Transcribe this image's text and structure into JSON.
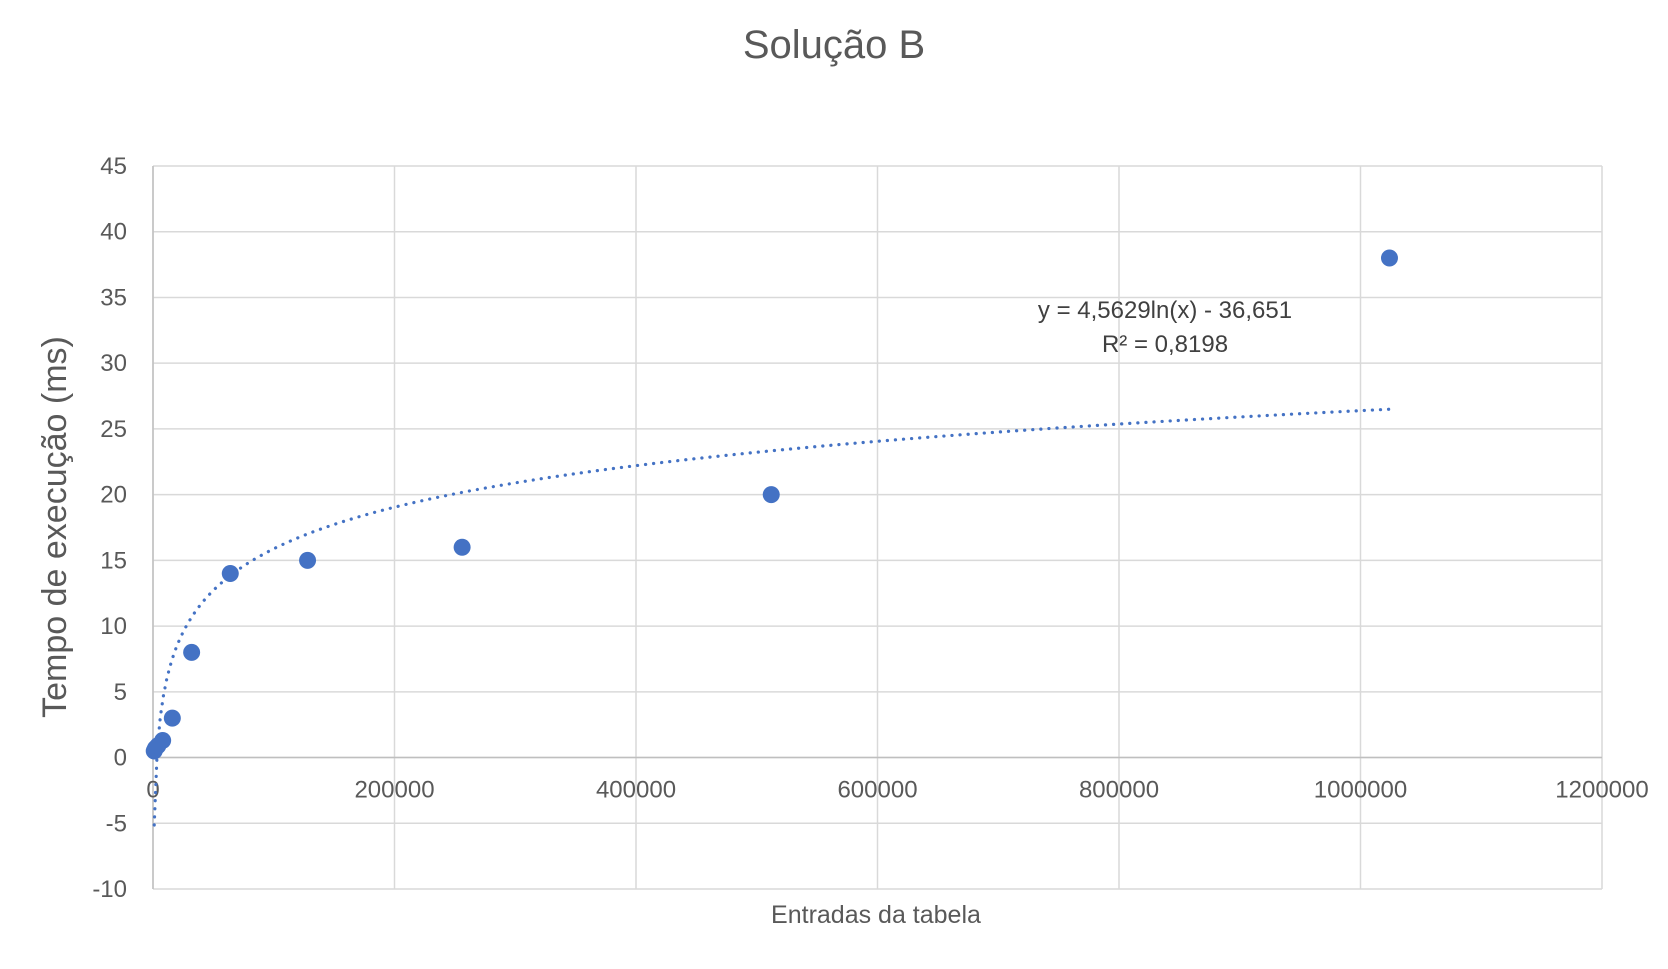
{
  "chart_data": {
    "type": "scatter",
    "title": "Solução B",
    "xlabel": "Entradas da tabela",
    "ylabel": "Tempo de execução  (ms)",
    "xlim": [
      0,
      1200000
    ],
    "ylim": [
      -10,
      45
    ],
    "x_ticks": [
      "0",
      "200000",
      "400000",
      "600000",
      "800000",
      "1000000",
      "1200000"
    ],
    "y_ticks": [
      "-10",
      "-5",
      "0",
      "5",
      "10",
      "15",
      "20",
      "25",
      "30",
      "35",
      "40",
      "45"
    ],
    "grid": true,
    "legend": "none",
    "marker_color": "#4472C4",
    "trendline_color": "#4472C4",
    "series": [
      {
        "points": [
          {
            "x": 1000,
            "y": 0.5
          },
          {
            "x": 2000,
            "y": 0.7
          },
          {
            "x": 4000,
            "y": 0.9
          },
          {
            "x": 8000,
            "y": 1.3
          },
          {
            "x": 16000,
            "y": 3
          },
          {
            "x": 32000,
            "y": 8
          },
          {
            "x": 64000,
            "y": 14
          },
          {
            "x": 128000,
            "y": 15
          },
          {
            "x": 256000,
            "y": 16
          },
          {
            "x": 512000,
            "y": 20
          },
          {
            "x": 1024000,
            "y": 38
          }
        ]
      }
    ],
    "trendline": {
      "type": "logarithmic",
      "a": 4.5629,
      "b": -36.651,
      "x_start": 1000,
      "x_end": 1024000,
      "equation_label": "y = 4,5629ln(x) - 36,651",
      "r2_label": "R² = 0,8198"
    }
  }
}
